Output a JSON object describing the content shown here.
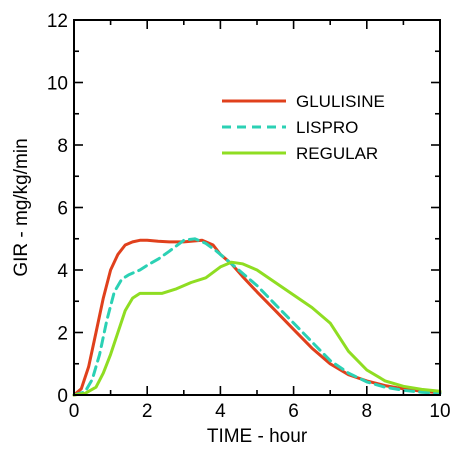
{
  "chart_data": {
    "type": "line",
    "title": "",
    "xlabel": "TIME - hour",
    "ylabel": "GIR - mg/kg/min",
    "xlim": [
      0,
      10
    ],
    "ylim": [
      0,
      12
    ],
    "xticks": [
      0,
      2,
      4,
      6,
      8,
      10
    ],
    "yticks": [
      0,
      2,
      4,
      6,
      8,
      10,
      12
    ],
    "grid": false,
    "legend_position": "top-right",
    "series": [
      {
        "name": "GLULISINE",
        "color": "#e0401c",
        "dash": "solid",
        "x": [
          0,
          0.2,
          0.4,
          0.6,
          0.8,
          1.0,
          1.2,
          1.4,
          1.6,
          1.8,
          2.0,
          2.3,
          2.6,
          3.0,
          3.5,
          3.8,
          4.0,
          4.3,
          4.6,
          5.0,
          5.5,
          6.0,
          6.5,
          7.0,
          7.5,
          8.0,
          8.5,
          9.0,
          9.5,
          10.0
        ],
        "y": [
          0,
          0.2,
          0.9,
          2.0,
          3.1,
          4.0,
          4.5,
          4.8,
          4.9,
          4.95,
          4.95,
          4.92,
          4.9,
          4.9,
          4.95,
          4.8,
          4.5,
          4.2,
          3.8,
          3.3,
          2.7,
          2.1,
          1.5,
          1.0,
          0.65,
          0.45,
          0.3,
          0.2,
          0.12,
          0.07
        ]
      },
      {
        "name": "LISPRO",
        "color": "#2bd1b4",
        "dash": "dashed",
        "x": [
          0,
          0.3,
          0.5,
          0.7,
          0.9,
          1.1,
          1.3,
          1.5,
          1.8,
          2.0,
          2.3,
          2.6,
          3.0,
          3.3,
          3.6,
          3.9,
          4.2,
          4.5,
          5.0,
          5.5,
          6.0,
          6.5,
          7.0,
          7.5,
          8.0,
          8.5,
          9.0,
          9.5,
          10.0
        ],
        "y": [
          0,
          0.1,
          0.5,
          1.3,
          2.4,
          3.3,
          3.7,
          3.85,
          4.0,
          4.15,
          4.35,
          4.6,
          4.95,
          5.0,
          4.85,
          4.6,
          4.3,
          4.0,
          3.5,
          2.9,
          2.3,
          1.7,
          1.1,
          0.7,
          0.42,
          0.25,
          0.15,
          0.09,
          0.05
        ]
      },
      {
        "name": "REGULAR",
        "color": "#8fdd22",
        "dash": "solid",
        "x": [
          0,
          0.3,
          0.6,
          0.8,
          1.0,
          1.2,
          1.4,
          1.6,
          1.8,
          2.0,
          2.4,
          2.8,
          3.2,
          3.6,
          4.0,
          4.3,
          4.6,
          5.0,
          5.5,
          6.0,
          6.5,
          7.0,
          7.5,
          8.0,
          8.5,
          9.0,
          9.5,
          10.0
        ],
        "y": [
          0,
          0.05,
          0.25,
          0.7,
          1.3,
          2.0,
          2.7,
          3.1,
          3.25,
          3.25,
          3.25,
          3.4,
          3.6,
          3.75,
          4.1,
          4.25,
          4.2,
          4.0,
          3.6,
          3.2,
          2.8,
          2.3,
          1.4,
          0.8,
          0.45,
          0.28,
          0.18,
          0.12
        ]
      }
    ]
  }
}
